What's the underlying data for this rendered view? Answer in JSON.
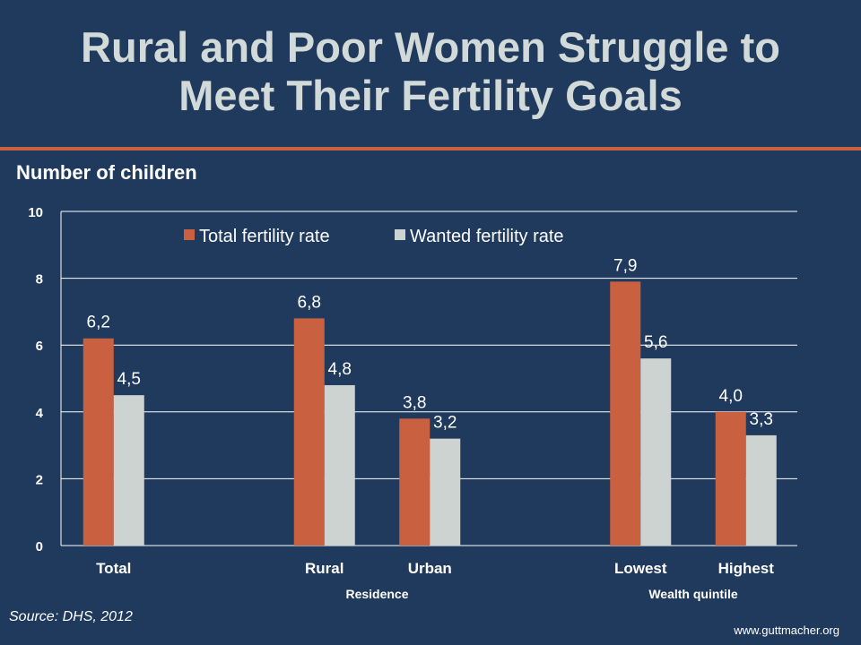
{
  "slide": {
    "title_line1": "Rural and Poor Women Struggle to",
    "title_line2": "Meet Their Fertility Goals",
    "source": "Source:  DHS, 2012",
    "website": "www.guttmacher.org"
  },
  "colors": {
    "background": "#1f3a5c",
    "accent_rule": "#c9603f",
    "series_total": "#c9603f",
    "series_wanted": "#cdd3d1"
  },
  "chart_data": {
    "type": "bar",
    "ylabel": "Number of children",
    "ylim": [
      0,
      10
    ],
    "yticks": [
      0,
      2,
      4,
      6,
      8,
      10
    ],
    "grid": true,
    "legend_position": "top",
    "categories": [
      "Total",
      "Rural",
      "Urban",
      "Lowest",
      "Highest"
    ],
    "groups": [
      {
        "label": "",
        "categories": [
          "Total"
        ]
      },
      {
        "label": "Residence",
        "categories": [
          "Rural",
          "Urban"
        ]
      },
      {
        "label": "Wealth quintile",
        "categories": [
          "Lowest",
          "Highest"
        ]
      }
    ],
    "series": [
      {
        "name": "Total fertility rate",
        "values": [
          6.2,
          6.8,
          3.8,
          7.9,
          4.0
        ],
        "labels": [
          "6,2",
          "6,8",
          "3,8",
          "7,9",
          "4,0"
        ]
      },
      {
        "name": "Wanted fertility rate",
        "values": [
          4.5,
          4.8,
          3.2,
          5.6,
          3.3
        ],
        "labels": [
          "4,5",
          "4,8",
          "3,2",
          "5,6",
          "3,3"
        ]
      }
    ]
  }
}
